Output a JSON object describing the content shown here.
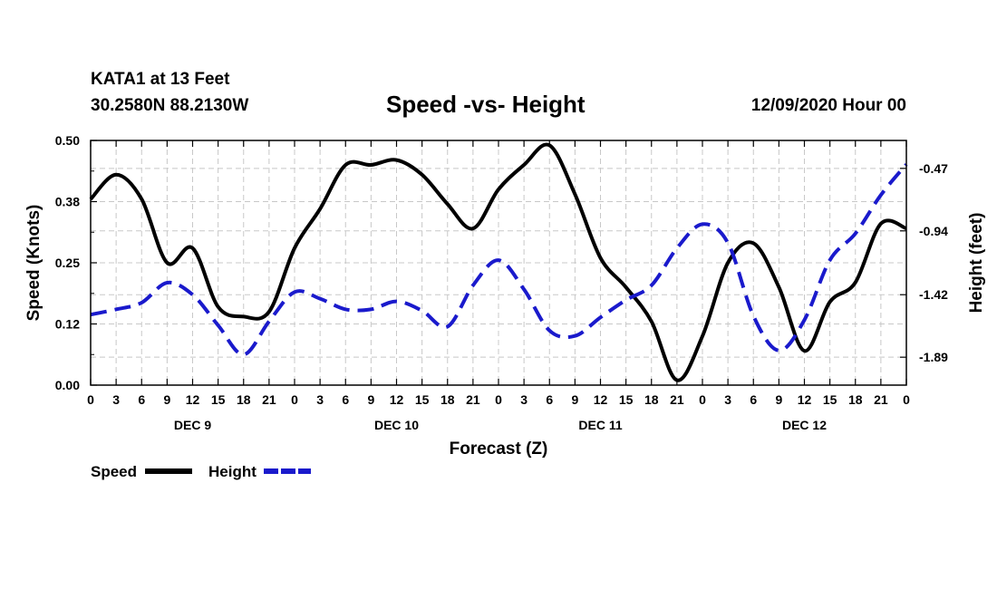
{
  "header": {
    "station": "KATA1 at 13 Feet",
    "location": "30.2580N 88.2130W",
    "title": "Speed -vs- Height",
    "datetime": "12/09/2020 Hour 00"
  },
  "chart_data": {
    "type": "line",
    "title": "Speed -vs- Height",
    "xlabel": "Forecast (Z)",
    "ylabel_left": "Speed (Knots)",
    "ylabel_right": "Height (feet)",
    "x_range_hours": [
      0,
      96
    ],
    "x_tick_labels": [
      "0",
      "3",
      "6",
      "9",
      "12",
      "15",
      "18",
      "21",
      "0",
      "3",
      "6",
      "9",
      "12",
      "15",
      "18",
      "21",
      "0",
      "3",
      "6",
      "9",
      "12",
      "15",
      "18",
      "21",
      "0",
      "3",
      "6",
      "9",
      "12",
      "15",
      "18",
      "21",
      "0"
    ],
    "day_labels": [
      {
        "label": "DEC 9",
        "hour": 12
      },
      {
        "label": "DEC 10",
        "hour": 36
      },
      {
        "label": "DEC 11",
        "hour": 60
      },
      {
        "label": "DEC 12",
        "hour": 84
      }
    ],
    "ylim_left": [
      0,
      0.5
    ],
    "y_ticks_left": [
      "0.00",
      "0.12",
      "0.25",
      "0.38",
      "0.50"
    ],
    "ylim_right": [
      -2.1,
      -0.26
    ],
    "y_ticks_right": [
      {
        "label": "-0.47",
        "value": -0.47
      },
      {
        "label": "-0.94",
        "value": -0.94
      },
      {
        "label": "-1.42",
        "value": -1.42
      },
      {
        "label": "-1.89",
        "value": -1.89
      }
    ],
    "grid": true,
    "series": [
      {
        "name": "Speed",
        "axis": "left",
        "color": "#000000",
        "style": "solid",
        "x": [
          0,
          3,
          6,
          9,
          12,
          15,
          18,
          21,
          24,
          27,
          30,
          33,
          36,
          39,
          42,
          45,
          48,
          51,
          54,
          57,
          60,
          63,
          66,
          69,
          72,
          75,
          78,
          81,
          84,
          87,
          90,
          93,
          96
        ],
        "y": [
          0.38,
          0.43,
          0.38,
          0.25,
          0.28,
          0.16,
          0.14,
          0.15,
          0.28,
          0.36,
          0.45,
          0.45,
          0.46,
          0.43,
          0.37,
          0.32,
          0.4,
          0.45,
          0.49,
          0.39,
          0.26,
          0.2,
          0.13,
          0.01,
          0.1,
          0.25,
          0.29,
          0.2,
          0.07,
          0.17,
          0.21,
          0.33,
          0.32
        ]
      },
      {
        "name": "Height",
        "axis": "right",
        "color": "#1a1acc",
        "style": "dashed",
        "x": [
          0,
          3,
          6,
          9,
          12,
          15,
          18,
          21,
          24,
          27,
          30,
          33,
          36,
          39,
          42,
          45,
          48,
          51,
          54,
          57,
          60,
          63,
          66,
          69,
          72,
          75,
          78,
          81,
          84,
          87,
          90,
          93,
          96
        ],
        "y": [
          -1.57,
          -1.53,
          -1.48,
          -1.33,
          -1.42,
          -1.65,
          -1.87,
          -1.62,
          -1.4,
          -1.45,
          -1.53,
          -1.53,
          -1.47,
          -1.54,
          -1.66,
          -1.35,
          -1.16,
          -1.38,
          -1.69,
          -1.73,
          -1.59,
          -1.46,
          -1.35,
          -1.07,
          -0.89,
          -1.03,
          -1.58,
          -1.84,
          -1.61,
          -1.16,
          -0.96,
          -0.67,
          -0.44
        ]
      }
    ],
    "legend": [
      "Speed",
      "Height"
    ],
    "legend_position": "bottom-left"
  }
}
